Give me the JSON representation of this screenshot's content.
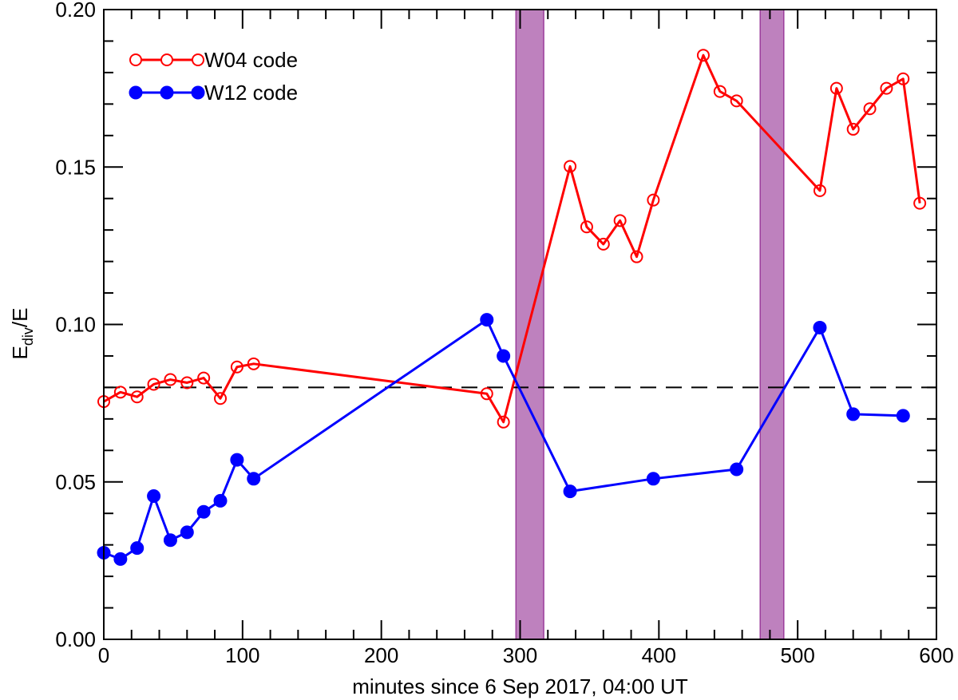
{
  "chart_data": {
    "type": "line",
    "title": "",
    "xlabel": "minutes since 6 Sep 2017, 04:00 UT",
    "ylabel": {
      "main": "E",
      "sub": "div",
      "suffix": "/E"
    },
    "xlim": [
      0,
      600
    ],
    "ylim": [
      0.0,
      0.2
    ],
    "x_ticks": [
      0,
      100,
      200,
      300,
      400,
      500,
      600
    ],
    "x_tick_labels": [
      "0",
      "100",
      "200",
      "300",
      "400",
      "500",
      "600"
    ],
    "y_ticks": [
      0.0,
      0.05,
      0.1,
      0.15,
      0.2
    ],
    "y_tick_labels": [
      "0.00",
      "0.05",
      "0.10",
      "0.15",
      "0.20"
    ],
    "grid": false,
    "legend_position": "top-left",
    "reference_line": {
      "y": 0.08,
      "style": "dashed",
      "color": "#000000"
    },
    "shaded_regions": [
      {
        "x0": 297,
        "x1": 317,
        "color": "#9b3d9b"
      },
      {
        "x0": 473,
        "x1": 490,
        "color": "#9b3d9b"
      }
    ],
    "series": [
      {
        "name": "W04 code",
        "color": "#ff0000",
        "marker": "open-circle",
        "x": [
          0,
          12,
          24,
          36,
          48,
          60,
          72,
          84,
          96,
          108,
          276,
          288,
          336,
          348,
          360,
          372,
          384,
          396,
          432,
          444,
          456,
          516,
          528,
          540,
          552,
          564,
          576,
          588
        ],
        "y": [
          0.0755,
          0.0785,
          0.077,
          0.081,
          0.0825,
          0.0815,
          0.083,
          0.0765,
          0.0865,
          0.0875,
          0.078,
          0.069,
          0.1502,
          0.131,
          0.1255,
          0.133,
          0.1215,
          0.1395,
          0.1855,
          0.174,
          0.171,
          0.1425,
          0.175,
          0.162,
          0.1685,
          0.175,
          0.178,
          0.1385
        ]
      },
      {
        "name": "W12 code",
        "color": "#0000ff",
        "marker": "filled-circle",
        "x": [
          0,
          12,
          24,
          36,
          48,
          60,
          72,
          84,
          96,
          108,
          276,
          288,
          336,
          396,
          456,
          516,
          540,
          576
        ],
        "y": [
          0.0275,
          0.0255,
          0.029,
          0.0455,
          0.0315,
          0.034,
          0.0405,
          0.044,
          0.057,
          0.051,
          0.1015,
          0.09,
          0.047,
          0.051,
          0.054,
          0.099,
          0.0715,
          0.071
        ]
      }
    ]
  }
}
